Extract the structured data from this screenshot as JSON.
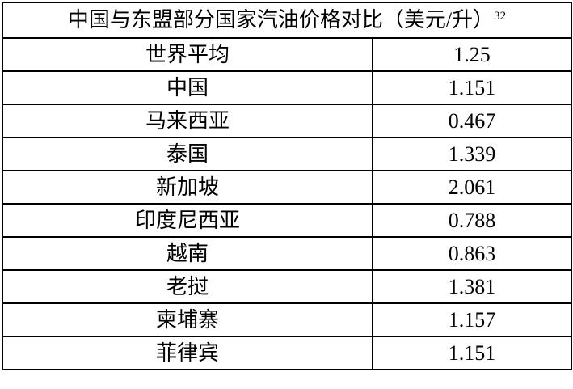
{
  "table": {
    "title": "中国与东盟部分国家汽油价格对比（美元/升）",
    "title_note": "32",
    "rows": [
      [
        "世界平均",
        "1.25"
      ],
      [
        "中国",
        "1.151"
      ],
      [
        "马来西亚",
        "0.467"
      ],
      [
        "泰国",
        "1.339"
      ],
      [
        "新加坡",
        "2.061"
      ],
      [
        "印度尼西亚",
        "0.788"
      ],
      [
        "越南",
        "0.863"
      ],
      [
        "老挝",
        "1.381"
      ],
      [
        "柬埔寨",
        "1.157"
      ],
      [
        "菲律宾",
        "1.151"
      ]
    ]
  }
}
